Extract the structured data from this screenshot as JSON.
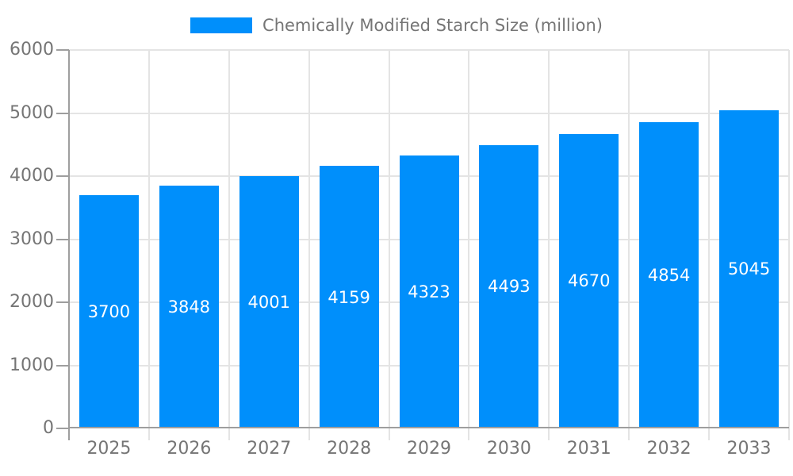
{
  "legend": {
    "label": "Chemically Modified Starch Size (million)"
  },
  "chart_data": {
    "type": "bar",
    "title": "Chemically Modified Starch Size (million)",
    "categories": [
      "2025",
      "2026",
      "2027",
      "2028",
      "2029",
      "2030",
      "2031",
      "2032",
      "2033"
    ],
    "series": [
      {
        "name": "Chemically Modified Starch Size (million)",
        "values": [
          3700,
          3848,
          4001,
          4159,
          4323,
          4493,
          4670,
          4854,
          5045
        ]
      }
    ],
    "value_labels": [
      "3700",
      "3848",
      "4001",
      "4159",
      "4323",
      "4493",
      "4670",
      "4854",
      "5045"
    ],
    "xlabel": "",
    "ylabel": "",
    "ylim": [
      0,
      6000
    ],
    "y_ticks": [
      0,
      1000,
      2000,
      3000,
      4000,
      5000,
      6000
    ],
    "grid": true,
    "legend_position": "top",
    "colors": {
      "bar": "#008FFB",
      "bar_value_label": "#FFFFFF",
      "tick_label": "#757575",
      "legend_label": "#757575",
      "gridline": "#E4E4E4",
      "axis": "#9E9E9E",
      "background": "#FFFFFF"
    }
  }
}
